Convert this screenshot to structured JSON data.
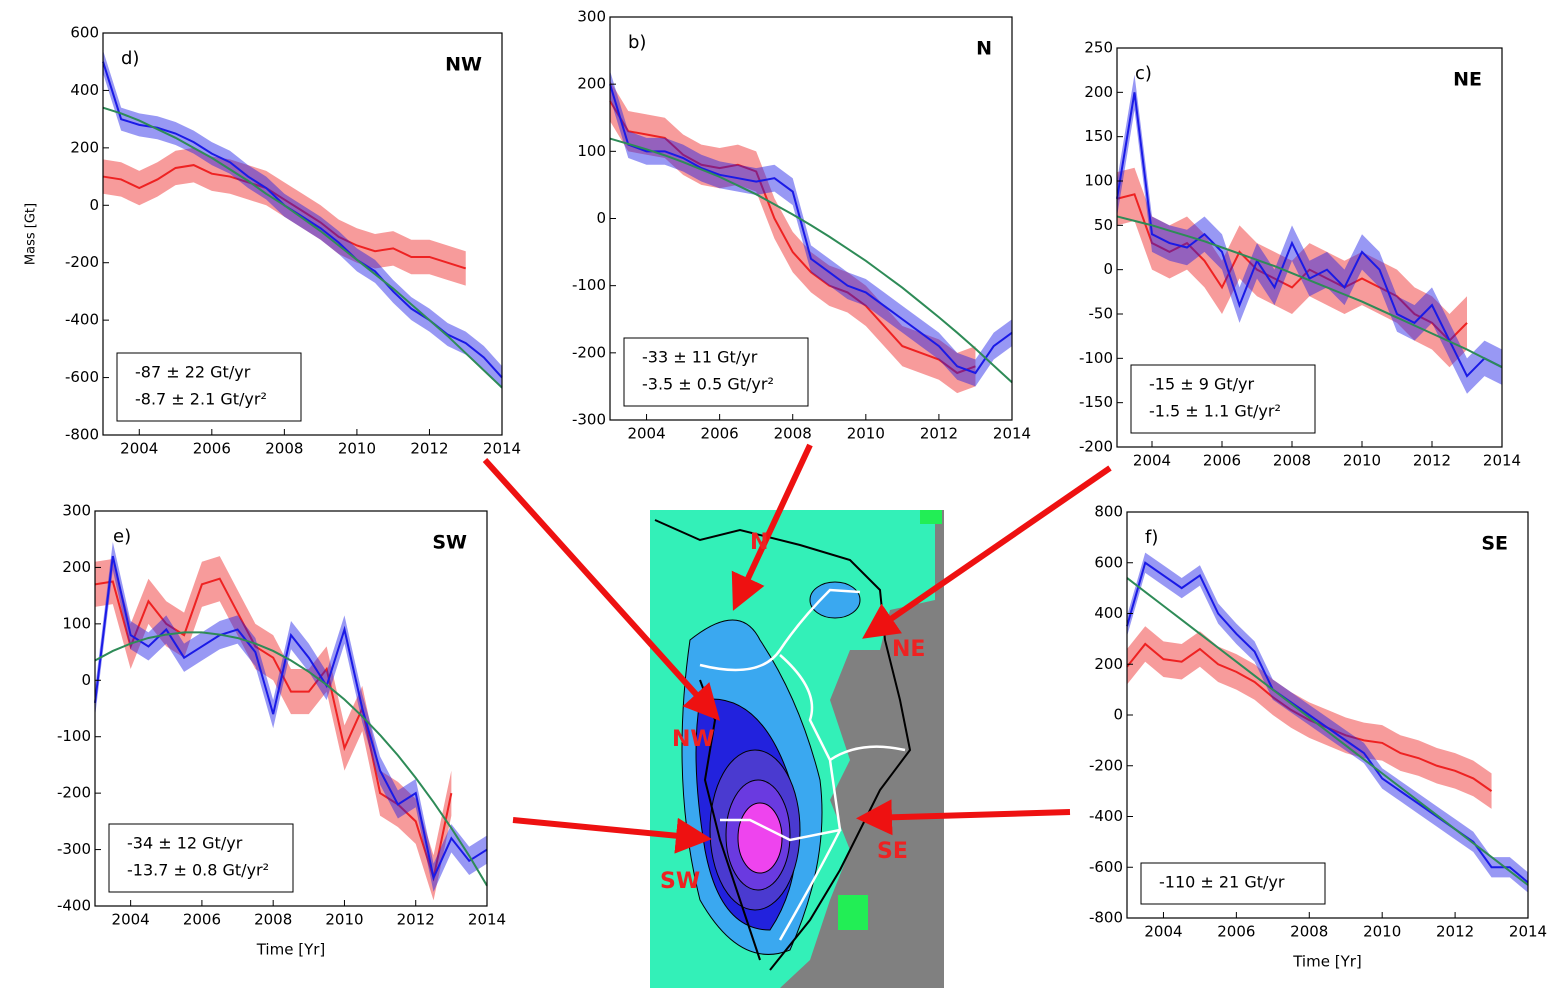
{
  "chart_data": [
    {
      "type": "line",
      "panel": "d)",
      "region": "NW",
      "ylabel": "Mass [Gt]",
      "annotations": [
        "-87 ± 22 Gt/yr",
        "-8.7 ± 2.1 Gt/yr²"
      ],
      "x": [
        2003,
        2003.5,
        2004,
        2004.5,
        2005,
        2005.5,
        2006,
        2006.5,
        2007,
        2007.5,
        2008,
        2008.5,
        2009,
        2009.5,
        2010,
        2010.5,
        2011,
        2011.5,
        2012,
        2012.5,
        2013,
        2013.5,
        2014
      ],
      "xlim": [
        2003,
        2014
      ],
      "ylim": [
        -800,
        600
      ],
      "xticks": [
        2004,
        2006,
        2008,
        2010,
        2012,
        2014
      ],
      "yticks": [
        -800,
        -600,
        -400,
        -200,
        0,
        200,
        400,
        600
      ],
      "series": [
        {
          "color": "#ee2222",
          "error": 60,
          "values": [
            100,
            90,
            60,
            90,
            130,
            140,
            110,
            100,
            80,
            60,
            20,
            -20,
            -60,
            -110,
            -140,
            -160,
            -150,
            -180,
            -180,
            -200,
            -220,
            null,
            null
          ]
        },
        {
          "color": "#1a1ae6",
          "error": 40,
          "values": [
            500,
            300,
            280,
            270,
            250,
            220,
            180,
            150,
            100,
            60,
            0,
            -40,
            -80,
            -130,
            -190,
            -230,
            -300,
            -360,
            -400,
            -450,
            -480,
            -530,
            -600
          ]
        },
        {
          "color": "#2e8b57",
          "values": [
            340,
            320,
            295,
            265,
            235,
            200,
            165,
            125,
            85,
            40,
            0,
            -45,
            -90,
            -140,
            -190,
            -240,
            -290,
            -345,
            -400,
            -455,
            -515,
            -575,
            -635
          ]
        }
      ]
    },
    {
      "type": "line",
      "panel": "b)",
      "region": "N",
      "annotations": [
        "-33 ± 11 Gt/yr",
        "-3.5 ± 0.5 Gt/yr²"
      ],
      "x": [
        2003,
        2003.5,
        2004,
        2004.5,
        2005,
        2005.5,
        2006,
        2006.5,
        2007,
        2007.5,
        2008,
        2008.5,
        2009,
        2009.5,
        2010,
        2010.5,
        2011,
        2011.5,
        2012,
        2012.5,
        2013,
        2013.5,
        2014
      ],
      "xlim": [
        2003,
        2014
      ],
      "ylim": [
        -300,
        300
      ],
      "xticks": [
        2004,
        2006,
        2008,
        2010,
        2012,
        2014
      ],
      "yticks": [
        -300,
        -200,
        -100,
        0,
        100,
        200,
        300
      ],
      "series": [
        {
          "color": "#ee2222",
          "error": 30,
          "values": [
            175,
            130,
            125,
            120,
            95,
            80,
            75,
            80,
            70,
            0,
            -50,
            -80,
            -100,
            -110,
            -130,
            -160,
            -190,
            -200,
            -210,
            -230,
            -220,
            null,
            null
          ]
        },
        {
          "color": "#1a1ae6",
          "error": 20,
          "values": [
            200,
            110,
            100,
            100,
            90,
            75,
            65,
            60,
            55,
            60,
            40,
            -60,
            -80,
            -100,
            -110,
            -130,
            -150,
            -170,
            -190,
            -220,
            -230,
            -190,
            -170
          ]
        },
        {
          "color": "#2e8b57",
          "values": [
            119,
            111,
            103,
            94,
            84,
            73,
            62,
            49,
            36,
            21,
            6,
            -10,
            -27,
            -45,
            -63,
            -83,
            -103,
            -125,
            -147,
            -170,
            -194,
            -219,
            -244
          ]
        }
      ]
    },
    {
      "type": "line",
      "panel": "c)",
      "region": "NE",
      "annotations": [
        "-15 ±  9 Gt/yr",
        "-1.5 ± 1.1 Gt/yr²"
      ],
      "x": [
        2003,
        2003.5,
        2004,
        2004.5,
        2005,
        2005.5,
        2006,
        2006.5,
        2007,
        2007.5,
        2008,
        2008.5,
        2009,
        2009.5,
        2010,
        2010.5,
        2011,
        2011.5,
        2012,
        2012.5,
        2013,
        2013.5,
        2014
      ],
      "xlim": [
        2003,
        2014
      ],
      "ylim": [
        -200,
        250
      ],
      "xticks": [
        2004,
        2006,
        2008,
        2010,
        2012,
        2014
      ],
      "yticks": [
        -200,
        -150,
        -100,
        -50,
        0,
        50,
        100,
        150,
        200,
        250
      ],
      "series": [
        {
          "color": "#ee2222",
          "error": 30,
          "values": [
            80,
            85,
            30,
            20,
            30,
            10,
            -20,
            20,
            0,
            -10,
            -20,
            0,
            -10,
            -20,
            -10,
            -20,
            -30,
            -50,
            -60,
            -80,
            -60,
            null,
            null
          ]
        },
        {
          "color": "#1a1ae6",
          "error": 20,
          "values": [
            80,
            200,
            40,
            30,
            25,
            40,
            20,
            -40,
            10,
            -20,
            30,
            -10,
            0,
            -20,
            20,
            0,
            -50,
            -60,
            -40,
            -80,
            -120,
            -100,
            -110
          ]
        },
        {
          "color": "#2e8b57",
          "values": [
            60,
            55,
            50,
            44,
            38,
            32,
            25,
            18,
            11,
            4,
            -4,
            -12,
            -20,
            -28,
            -36,
            -45,
            -54,
            -63,
            -72,
            -81,
            -90,
            -100,
            -110
          ]
        }
      ]
    },
    {
      "type": "line",
      "panel": "e)",
      "region": "SW",
      "xlabel": "Time [Yr]",
      "annotations": [
        "-34 ± 12 Gt/yr",
        "-13.7 ± 0.8 Gt/yr²"
      ],
      "x": [
        2003,
        2003.5,
        2004,
        2004.5,
        2005,
        2005.5,
        2006,
        2006.5,
        2007,
        2007.5,
        2008,
        2008.5,
        2009,
        2009.5,
        2010,
        2010.5,
        2011,
        2011.5,
        2012,
        2012.5,
        2013,
        2013.5,
        2014
      ],
      "xlim": [
        2003,
        2014
      ],
      "ylim": [
        -400,
        300
      ],
      "xticks": [
        2004,
        2006,
        2008,
        2010,
        2012,
        2014
      ],
      "yticks": [
        -400,
        -300,
        -200,
        -100,
        0,
        100,
        200,
        300
      ],
      "series": [
        {
          "color": "#ee2222",
          "error": 40,
          "values": [
            170,
            175,
            60,
            140,
            100,
            80,
            170,
            180,
            120,
            60,
            40,
            -20,
            -20,
            20,
            -120,
            -50,
            -200,
            -220,
            -250,
            -350,
            -200,
            null,
            null
          ]
        },
        {
          "color": "#1a1ae6",
          "error": 25,
          "values": [
            -40,
            220,
            80,
            60,
            90,
            40,
            60,
            80,
            90,
            50,
            -60,
            80,
            40,
            -10,
            90,
            -50,
            -160,
            -220,
            -200,
            -350,
            -280,
            -320,
            -300
          ]
        },
        {
          "color": "#2e8b57",
          "values": [
            35,
            52,
            65,
            75,
            81,
            85,
            85,
            81,
            75,
            65,
            52,
            35,
            15,
            -8,
            -34,
            -64,
            -97,
            -133,
            -173,
            -216,
            -262,
            -311,
            -364
          ]
        }
      ]
    },
    {
      "type": "line",
      "panel": "f)",
      "region": "SE",
      "xlabel": "Time [Yr]",
      "annotations": [
        "-110 ± 21 Gt/yr"
      ],
      "x": [
        2003,
        2003.5,
        2004,
        2004.5,
        2005,
        2005.5,
        2006,
        2006.5,
        2007,
        2007.5,
        2008,
        2008.5,
        2009,
        2009.5,
        2010,
        2010.5,
        2011,
        2011.5,
        2012,
        2012.5,
        2013,
        2013.5,
        2014
      ],
      "xlim": [
        2003,
        2014
      ],
      "ylim": [
        -800,
        800
      ],
      "xticks": [
        2004,
        2006,
        2008,
        2010,
        2012,
        2014
      ],
      "yticks": [
        -800,
        -600,
        -400,
        -200,
        0,
        200,
        400,
        600,
        800
      ],
      "series": [
        {
          "color": "#ee2222",
          "error": 70,
          "values": [
            190,
            280,
            220,
            210,
            260,
            200,
            170,
            130,
            70,
            20,
            -20,
            -50,
            -80,
            -100,
            -110,
            -150,
            -170,
            -200,
            -220,
            -250,
            -300,
            null,
            null
          ]
        },
        {
          "color": "#1a1ae6",
          "error": 40,
          "values": [
            350,
            600,
            550,
            500,
            550,
            400,
            320,
            250,
            100,
            50,
            0,
            -50,
            -100,
            -150,
            -250,
            -300,
            -350,
            -400,
            -450,
            -500,
            -600,
            -600,
            -660
          ]
        },
        {
          "color": "#2e8b57",
          "values": [
            540,
            485,
            430,
            375,
            320,
            265,
            210,
            155,
            100,
            45,
            -10,
            -65,
            -120,
            -175,
            -230,
            -285,
            -340,
            -395,
            -450,
            -505,
            -560,
            -615,
            -670
          ]
        }
      ]
    }
  ],
  "map": {
    "labels": [
      "N",
      "NE",
      "NW",
      "SE",
      "SW"
    ]
  }
}
